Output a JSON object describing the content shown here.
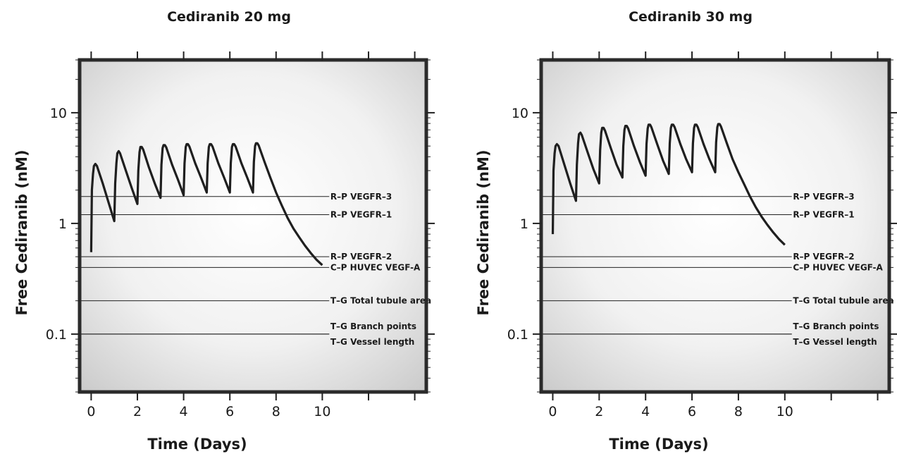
{
  "colors": {
    "frame": "#2b2b2b",
    "curve": "#1f1f1f",
    "panel_center": "#ffffff",
    "panel_edge": "#c9c9c9"
  },
  "chart_data": [
    {
      "type": "line",
      "title": "Cediranib 20 mg",
      "xlabel": "Time (Days)",
      "ylabel": "Free Cediranib (nM)",
      "xscale": "linear",
      "yscale": "log",
      "xlim": [
        -0.5,
        14.5
      ],
      "ylim": [
        0.03,
        30
      ],
      "xticks": [
        0,
        2,
        4,
        6,
        8,
        10
      ],
      "xtick_labels": [
        "0",
        "2",
        "4",
        "6",
        "8",
        "10"
      ],
      "yticks": [
        0.1,
        1,
        10
      ],
      "ytick_labels": [
        "0.1",
        "1",
        "10"
      ],
      "grid": false,
      "series": [
        {
          "x": [
            0,
            0.03,
            0.08,
            0.12,
            0.18,
            0.25,
            0.5,
            0.75,
            1.0,
            1.04,
            1.09,
            1.13,
            1.19,
            1.25,
            1.5,
            1.75,
            2.0,
            2.04,
            2.09,
            2.13,
            2.19,
            2.25,
            2.5,
            2.75,
            3.0,
            3.04,
            3.09,
            3.13,
            3.19,
            3.25,
            3.5,
            3.75,
            4.0,
            4.04,
            4.09,
            4.13,
            4.19,
            4.25,
            4.5,
            4.75,
            5.0,
            5.04,
            5.09,
            5.13,
            5.19,
            5.25,
            5.5,
            5.75,
            6.0,
            6.04,
            6.09,
            6.13,
            6.19,
            6.25,
            6.5,
            6.75,
            7.0,
            7.04,
            7.09,
            7.13,
            7.19,
            7.25,
            7.5,
            7.75,
            8.0,
            8.25,
            8.5,
            8.75,
            9.0,
            9.25,
            9.5,
            9.75,
            10.0
          ],
          "y": [
            0.55,
            2.0,
            2.8,
            3.3,
            3.45,
            3.3,
            2.3,
            1.55,
            1.05,
            2.3,
            3.5,
            4.3,
            4.5,
            4.3,
            3.0,
            2.1,
            1.5,
            3.0,
            4.4,
            4.9,
            4.9,
            4.65,
            3.2,
            2.3,
            1.7,
            3.4,
            4.8,
            5.1,
            5.1,
            4.85,
            3.4,
            2.5,
            1.8,
            3.5,
            4.9,
            5.2,
            5.2,
            4.95,
            3.5,
            2.6,
            1.9,
            3.5,
            4.9,
            5.2,
            5.2,
            4.95,
            3.5,
            2.6,
            1.9,
            3.5,
            4.9,
            5.2,
            5.2,
            4.95,
            3.5,
            2.6,
            1.9,
            3.6,
            5.0,
            5.3,
            5.3,
            5.05,
            3.6,
            2.6,
            1.9,
            1.45,
            1.12,
            0.9,
            0.75,
            0.63,
            0.54,
            0.47,
            0.42
          ]
        }
      ],
      "reference_lines": [
        {
          "y": 1.75,
          "label": "R–P VEGFR–3"
        },
        {
          "y": 1.2,
          "label": "R–P VEGFR–1"
        },
        {
          "y": 0.5,
          "label": "R–P VEGFR–2"
        },
        {
          "y": 0.4,
          "label": "C–P HUVEC VEGF-A"
        },
        {
          "y": 0.2,
          "label": "T–G Total tubule area"
        },
        {
          "y": 0.1,
          "label": "T–G Branch points"
        },
        {
          "y": 0.1,
          "label": "T–G Vessel length"
        }
      ]
    },
    {
      "type": "line",
      "title": "Cediranib 30 mg",
      "xlabel": "Time (Days)",
      "ylabel": "Free Cediranib (nM)",
      "xscale": "linear",
      "yscale": "log",
      "xlim": [
        -0.5,
        14.5
      ],
      "ylim": [
        0.03,
        30
      ],
      "xticks": [
        0,
        2,
        4,
        6,
        8,
        10
      ],
      "xtick_labels": [
        "0",
        "2",
        "4",
        "6",
        "8",
        "10"
      ],
      "yticks": [
        0.1,
        1,
        10
      ],
      "ytick_labels": [
        "0.1",
        "1",
        "10"
      ],
      "grid": false,
      "series": [
        {
          "x": [
            0,
            0.03,
            0.08,
            0.12,
            0.18,
            0.25,
            0.5,
            0.75,
            1.0,
            1.04,
            1.09,
            1.13,
            1.19,
            1.25,
            1.5,
            1.75,
            2.0,
            2.04,
            2.09,
            2.13,
            2.19,
            2.25,
            2.5,
            2.75,
            3.0,
            3.04,
            3.09,
            3.13,
            3.19,
            3.25,
            3.5,
            3.75,
            4.0,
            4.04,
            4.09,
            4.13,
            4.19,
            4.25,
            4.5,
            4.75,
            5.0,
            5.04,
            5.09,
            5.13,
            5.19,
            5.25,
            5.5,
            5.75,
            6.0,
            6.04,
            6.09,
            6.13,
            6.19,
            6.25,
            6.5,
            6.75,
            7.0,
            7.04,
            7.09,
            7.13,
            7.19,
            7.25,
            7.5,
            7.75,
            8.0,
            8.25,
            8.5,
            8.75,
            9.0,
            9.25,
            9.5,
            9.75,
            10.0
          ],
          "y": [
            0.8,
            3.0,
            4.3,
            5.0,
            5.2,
            5.0,
            3.4,
            2.3,
            1.6,
            3.4,
            5.3,
            6.4,
            6.6,
            6.3,
            4.4,
            3.1,
            2.3,
            4.6,
            6.6,
            7.3,
            7.3,
            6.9,
            4.8,
            3.4,
            2.6,
            5.0,
            7.0,
            7.6,
            7.6,
            7.2,
            5.0,
            3.6,
            2.7,
            5.2,
            7.2,
            7.8,
            7.8,
            7.4,
            5.2,
            3.7,
            2.8,
            5.3,
            7.3,
            7.8,
            7.8,
            7.4,
            5.2,
            3.8,
            2.9,
            5.3,
            7.3,
            7.8,
            7.8,
            7.4,
            5.2,
            3.8,
            2.9,
            5.4,
            7.4,
            7.9,
            7.9,
            7.5,
            5.3,
            3.8,
            2.9,
            2.25,
            1.75,
            1.4,
            1.15,
            0.97,
            0.83,
            0.72,
            0.64
          ]
        }
      ],
      "reference_lines": [
        {
          "y": 1.75,
          "label": "R–P VEGFR–3"
        },
        {
          "y": 1.2,
          "label": "R–P VEGFR–1"
        },
        {
          "y": 0.5,
          "label": "R–P VEGFR–2"
        },
        {
          "y": 0.4,
          "label": "C–P HUVEC VEGF-A"
        },
        {
          "y": 0.2,
          "label": "T–G Total tubule area"
        },
        {
          "y": 0.1,
          "label": "T–G Branch points"
        },
        {
          "y": 0.1,
          "label": "T–G Vessel length"
        }
      ]
    }
  ]
}
